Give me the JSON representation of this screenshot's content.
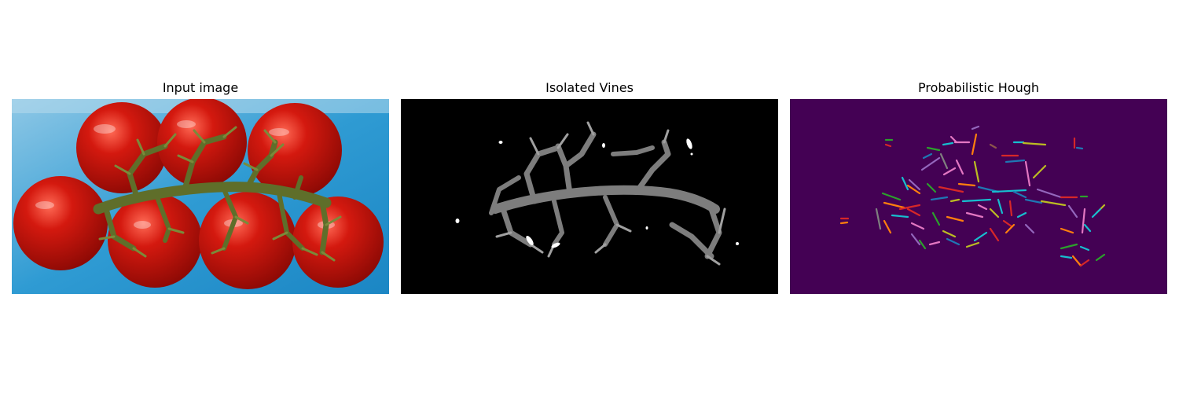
{
  "panels": [
    {
      "title": "Input image"
    },
    {
      "title": "Isolated Vines"
    },
    {
      "title": "Probabilistic Hough"
    }
  ],
  "colors": {
    "background": "#ffffff",
    "tray_blue": "#3aa6d8",
    "tomato_red": "#c5150c",
    "vine_green": "#5f6e2a",
    "mask_background": "#000000",
    "vine_gray": "#8a8a8a",
    "hough_background": "#440154"
  }
}
